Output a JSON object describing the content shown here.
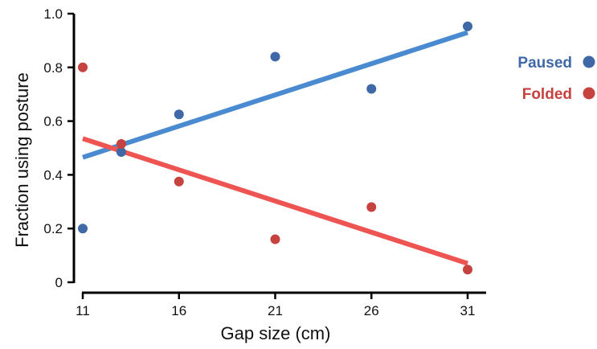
{
  "chart_data": {
    "type": "scatter",
    "title": "",
    "xlabel": "Gap size (cm)",
    "ylabel": "Fraction using posture",
    "xlim": [
      11,
      31
    ],
    "ylim": [
      0,
      1.0
    ],
    "xticks": [
      11,
      16,
      21,
      26,
      31
    ],
    "xtick_labels": [
      "11",
      "16",
      "21",
      "26",
      "31"
    ],
    "yticks": [
      0,
      0.2,
      0.4,
      0.6,
      0.8,
      1.0
    ],
    "ytick_labels": [
      "0",
      "0.2",
      "0.4",
      "0.6",
      "0.8",
      "1.0"
    ],
    "grid": false,
    "legend_position": "right",
    "series": [
      {
        "name": "Paused",
        "color": "#3f68a6",
        "line_color": "#4a8ad0",
        "points": [
          {
            "x": 11,
            "y": 0.2
          },
          {
            "x": 13,
            "y": 0.485
          },
          {
            "x": 16,
            "y": 0.625
          },
          {
            "x": 21,
            "y": 0.84
          },
          {
            "x": 26,
            "y": 0.72
          },
          {
            "x": 31,
            "y": 0.953
          }
        ],
        "trend": {
          "x": [
            11,
            31
          ],
          "y": [
            0.465,
            0.93
          ]
        }
      },
      {
        "name": "Folded",
        "color": "#c5423f",
        "line_color": "#ee5452",
        "points": [
          {
            "x": 11,
            "y": 0.8
          },
          {
            "x": 13,
            "y": 0.515
          },
          {
            "x": 16,
            "y": 0.375
          },
          {
            "x": 21,
            "y": 0.16
          },
          {
            "x": 26,
            "y": 0.28
          },
          {
            "x": 31,
            "y": 0.047
          }
        ],
        "trend": {
          "x": [
            11,
            31
          ],
          "y": [
            0.535,
            0.07
          ]
        }
      }
    ]
  }
}
